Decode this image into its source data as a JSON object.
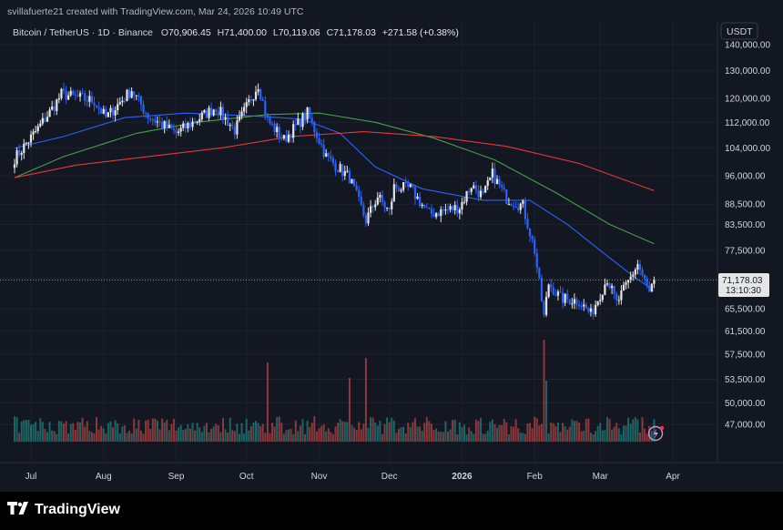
{
  "header": {
    "credit": "svillafuerte21 created with TradingView.com, Mar 24, 2026 10:49 UTC",
    "symbol": "Bitcoin / TetherUS · 1D · Binance",
    "open_label": "O",
    "open": "70,906.45",
    "high_label": "H",
    "high": "71,400.00",
    "low_label": "L",
    "low": "70,119.06",
    "close_label": "C",
    "close": "71,178.03",
    "change": "+271.58 (+0.38%)"
  },
  "price_axis": {
    "currency": "USDT",
    "last_price": "71,178.03",
    "countdown": "13:10:30"
  },
  "brand": {
    "name": "TradingView"
  },
  "colors": {
    "background": "#131722",
    "grid": "#1e222d",
    "up": "#e6e6e6",
    "down": "#2962ff",
    "ma_short": "#2962ff",
    "ma_mid": "#43a047",
    "ma_long": "#e53935",
    "vol_up": "#26a69a",
    "vol_down": "#ef5350"
  },
  "chart_data": {
    "type": "candlestick",
    "scale": "log",
    "x_ticks": [
      "Jul",
      "Aug",
      "Sep",
      "Oct",
      "Nov",
      "Dec",
      "2026",
      "Feb",
      "Mar",
      "Apr"
    ],
    "y_ticks": [
      "140,000.00",
      "130,000.00",
      "120,000.00",
      "112,000.00",
      "104,000.00",
      "96,000.00",
      "88,500.00",
      "83,500.00",
      "77,500.00",
      "71,500.00",
      "65,500.00",
      "61,500.00",
      "57,500.00",
      "53,500.00",
      "50,000.00",
      "47,000.00"
    ],
    "y_tick_values": [
      140000,
      130000,
      120000,
      112000,
      104000,
      96000,
      88500,
      83500,
      77500,
      71500,
      65500,
      61500,
      57500,
      53500,
      50000,
      47000
    ],
    "ylim": [
      45000,
      150000
    ],
    "price_keypoints": [
      {
        "date": "2025-06-24",
        "price": 101000
      },
      {
        "date": "2025-07-03",
        "price": 109000
      },
      {
        "date": "2025-07-11",
        "price": 117500
      },
      {
        "date": "2025-07-14",
        "price": 121500
      },
      {
        "date": "2025-07-28",
        "price": 119000
      },
      {
        "date": "2025-08-02",
        "price": 113500
      },
      {
        "date": "2025-08-13",
        "price": 123000
      },
      {
        "date": "2025-08-20",
        "price": 114000
      },
      {
        "date": "2025-09-01",
        "price": 108500
      },
      {
        "date": "2025-09-18",
        "price": 117000
      },
      {
        "date": "2025-09-26",
        "price": 109500
      },
      {
        "date": "2025-10-06",
        "price": 125000
      },
      {
        "date": "2025-10-10",
        "price": 112500
      },
      {
        "date": "2025-10-17",
        "price": 106500
      },
      {
        "date": "2025-10-27",
        "price": 115000
      },
      {
        "date": "2025-11-04",
        "price": 101500
      },
      {
        "date": "2025-11-14",
        "price": 95500
      },
      {
        "date": "2025-11-21",
        "price": 84500
      },
      {
        "date": "2025-11-26",
        "price": 90500
      },
      {
        "date": "2025-12-01",
        "price": 86500
      },
      {
        "date": "2025-12-03",
        "price": 93000
      },
      {
        "date": "2025-12-10",
        "price": 92500
      },
      {
        "date": "2025-12-18",
        "price": 86000
      },
      {
        "date": "2025-12-31",
        "price": 87800
      },
      {
        "date": "2026-01-05",
        "price": 93500
      },
      {
        "date": "2026-01-10",
        "price": 90500
      },
      {
        "date": "2026-01-14",
        "price": 96500
      },
      {
        "date": "2026-01-20",
        "price": 90000
      },
      {
        "date": "2026-01-27",
        "price": 88000
      },
      {
        "date": "2026-02-01",
        "price": 77500
      },
      {
        "date": "2026-02-05",
        "price": 64000
      },
      {
        "date": "2026-02-07",
        "price": 70500
      },
      {
        "date": "2026-02-12",
        "price": 67500
      },
      {
        "date": "2026-02-20",
        "price": 67000
      },
      {
        "date": "2026-02-25",
        "price": 64500
      },
      {
        "date": "2026-03-04",
        "price": 71500
      },
      {
        "date": "2026-03-08",
        "price": 66500
      },
      {
        "date": "2026-03-17",
        "price": 74500
      },
      {
        "date": "2026-03-22",
        "price": 68500
      },
      {
        "date": "2026-03-24",
        "price": 71178
      }
    ],
    "ma_short": [
      [
        "2025-06-24",
        104000
      ],
      [
        "2025-07-15",
        107500
      ],
      [
        "2025-08-10",
        113500
      ],
      [
        "2025-09-05",
        115000
      ],
      [
        "2025-10-05",
        114000
      ],
      [
        "2025-10-25",
        113000
      ],
      [
        "2025-11-10",
        108500
      ],
      [
        "2025-11-25",
        98500
      ],
      [
        "2025-12-15",
        92500
      ],
      [
        "2026-01-10",
        89500
      ],
      [
        "2026-01-30",
        89500
      ],
      [
        "2026-02-15",
        83500
      ],
      [
        "2026-03-01",
        77500
      ],
      [
        "2026-03-15",
        72000
      ],
      [
        "2026-03-24",
        69000
      ]
    ],
    "ma_mid": [
      [
        "2025-06-24",
        95500
      ],
      [
        "2025-07-15",
        101500
      ],
      [
        "2025-08-15",
        108500
      ],
      [
        "2025-09-10",
        112000
      ],
      [
        "2025-10-10",
        114500
      ],
      [
        "2025-11-01",
        115000
      ],
      [
        "2025-11-25",
        112000
      ],
      [
        "2025-12-20",
        107000
      ],
      [
        "2026-01-15",
        100500
      ],
      [
        "2026-02-10",
        91500
      ],
      [
        "2026-03-05",
        83500
      ],
      [
        "2026-03-24",
        79000
      ]
    ],
    "ma_long": [
      [
        "2025-06-24",
        95500
      ],
      [
        "2025-07-20",
        99000
      ],
      [
        "2025-08-20",
        101500
      ],
      [
        "2025-09-20",
        104000
      ],
      [
        "2025-10-20",
        107500
      ],
      [
        "2025-11-20",
        109000
      ],
      [
        "2025-12-20",
        107500
      ],
      [
        "2026-01-20",
        104500
      ],
      [
        "2026-02-20",
        99500
      ],
      [
        "2026-03-24",
        92000
      ]
    ],
    "volume_spikes": [
      {
        "date": "2025-10-10",
        "value": 0.75,
        "dir": "down"
      },
      {
        "date": "2025-11-14",
        "value": 0.58,
        "dir": "down"
      },
      {
        "date": "2025-11-21",
        "value": 0.8,
        "dir": "down"
      },
      {
        "date": "2026-02-05",
        "value": 1.0,
        "dir": "down"
      },
      {
        "date": "2026-02-06",
        "value": 0.55,
        "dir": "up"
      }
    ]
  }
}
